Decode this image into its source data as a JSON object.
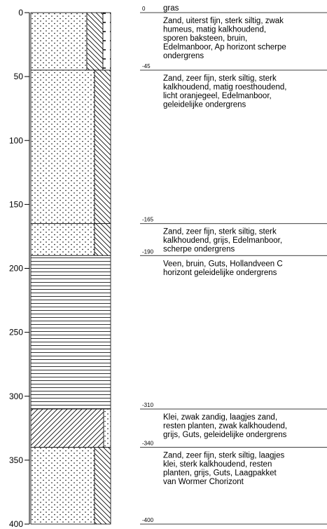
{
  "depth_axis": {
    "ylim": [
      0,
      400
    ],
    "yticks": [
      0,
      50,
      100,
      150,
      200,
      250,
      300,
      350,
      400
    ]
  },
  "layers": [
    {
      "top": 0,
      "bottom": 45,
      "top_label": "0",
      "top_note": "gras",
      "description": [
        "Zand, uiterst fijn, sterk siltig, zwak",
        "humeus, matig kalkhoudend,",
        "sporen baksteen, bruin,",
        "Edelmanboor, Ap horizont scherpe",
        "ondergrens"
      ]
    },
    {
      "top": 45,
      "bottom": 165,
      "top_label": "-45",
      "description": [
        "Zand, zeer fijn, sterk siltig, sterk",
        "kalkhoudend, matig roesthoudend,",
        "licht oranjegeel, Edelmanboor,",
        "geleidelijke ondergrens"
      ]
    },
    {
      "top": 165,
      "bottom": 190,
      "top_label": "-165",
      "description": [
        "Zand, zeer fijn, sterk siltig, sterk",
        "kalkhoudend, grijs, Edelmanboor,",
        "scherpe ondergrens"
      ]
    },
    {
      "top": 190,
      "bottom": 310,
      "top_label": "-190",
      "description": [
        "Veen, bruin, Guts, Hollandveen  C",
        "horizont geleidelijke ondergrens"
      ]
    },
    {
      "top": 310,
      "bottom": 340,
      "top_label": "-310",
      "description": [
        "Klei, zwak zandig, laagjes zand,",
        "resten planten, zwak kalkhoudend,",
        "grijs, Guts, geleidelijke ondergrens"
      ]
    },
    {
      "top": 340,
      "bottom": 400,
      "top_label": "-340",
      "description": [
        "Zand, zeer fijn, sterk siltig, laagjes",
        "klei, sterk kalkhoudend, resten",
        "planten, grijs, Guts, Laagpakket",
        "van Wormer Chorizont"
      ]
    }
  ],
  "base_label": "-400"
}
